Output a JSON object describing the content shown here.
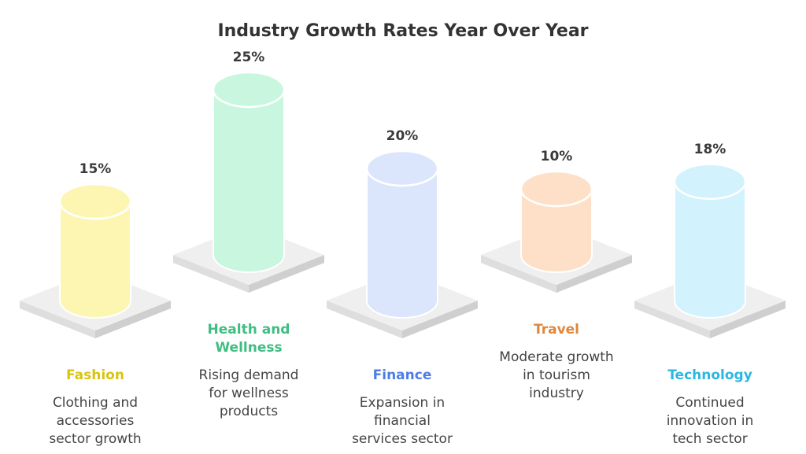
{
  "chart_data": {
    "type": "bar",
    "title": "Industry Growth Rates Year Over Year",
    "categories": [
      "Fashion",
      "Health and Wellness",
      "Finance",
      "Travel",
      "Technology"
    ],
    "values": [
      15,
      25,
      20,
      10,
      18
    ],
    "value_labels": [
      "15%",
      "25%",
      "20%",
      "10%",
      "18%"
    ],
    "descriptions": [
      "Clothing and accessories sector growth",
      "Rising demand for wellness products",
      "Expansion in financial services sector",
      "Moderate growth in tourism industry",
      "Continued innovation in tech sector"
    ],
    "colors": {
      "fill": [
        "#fdf6b3",
        "#c9f6df",
        "#dbe6fd",
        "#fde0c7",
        "#d2f2fd"
      ],
      "label": [
        "#d8c40e",
        "#3fbe82",
        "#4c7ee6",
        "#e0873c",
        "#2bb8e0"
      ]
    },
    "ylim": [
      0,
      25
    ],
    "grid": false,
    "legend": "none"
  }
}
